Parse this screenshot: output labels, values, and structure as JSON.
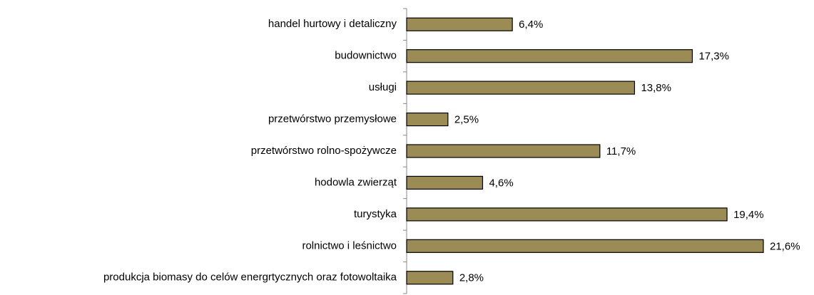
{
  "chart_data": {
    "type": "bar",
    "orientation": "horizontal",
    "categories": [
      "handel hurtowy i detaliczny",
      "budownictwo",
      "usługi",
      "przetwórstwo przemysłowe",
      "przetwórstwo rolno-spożywcze",
      "hodowla zwierząt",
      "turystyka",
      "rolnictwo i leśnictwo",
      "produkcja biomasy do celów energrtycznych oraz fotowoltaika"
    ],
    "values": [
      6.4,
      17.3,
      13.8,
      2.5,
      11.7,
      4.6,
      19.4,
      21.6,
      2.8
    ],
    "value_labels": [
      "6,4%",
      "17,3%",
      "13,8%",
      "2,5%",
      "11,7%",
      "4,6%",
      "19,4%",
      "21,6%",
      "2,8%"
    ],
    "color": "#9b8b55"
  }
}
